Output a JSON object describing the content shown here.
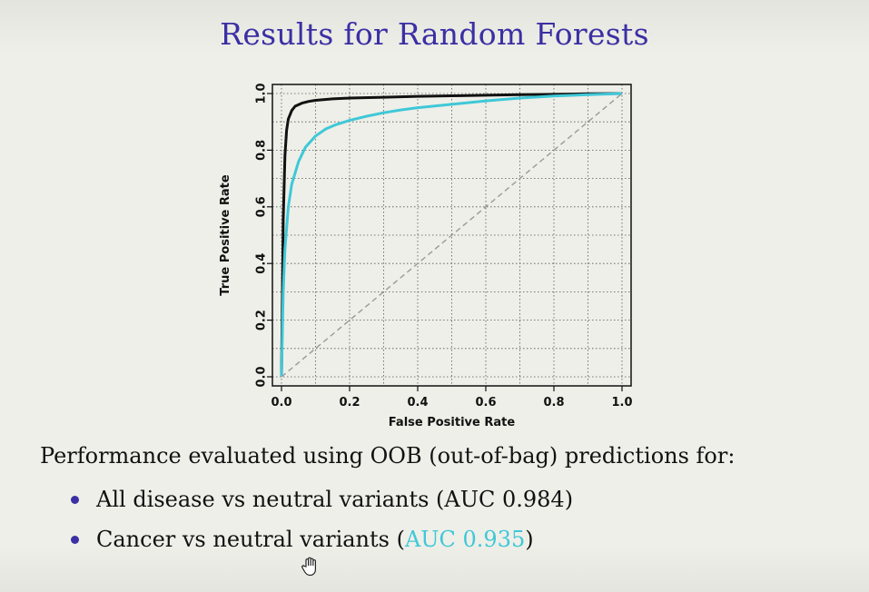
{
  "slide": {
    "title": "Results for Random Forests",
    "body_text": "Performance evaluated using OOB (out-of-bag) predictions for:",
    "bullets": [
      {
        "prefix": "All disease vs neutral variants (",
        "auc": "AUC 0.984",
        "suffix": ")"
      },
      {
        "prefix": "Cancer vs neutral variants (",
        "auc": "AUC 0.935",
        "suffix": ")"
      }
    ],
    "colors": {
      "title": "#3b2fa4",
      "bullet": "#3b2fa4",
      "cyan": "#3fc8d8"
    }
  },
  "cursor": {
    "icon": "hand-cursor-icon"
  },
  "chart_data": {
    "type": "line",
    "title": "",
    "xlabel": "False Positive Rate",
    "ylabel": "True Positive Rate",
    "xlim": [
      0.0,
      1.0
    ],
    "ylim": [
      0.0,
      1.0
    ],
    "xticks": [
      "0.0",
      "0.2",
      "0.4",
      "0.6",
      "0.8",
      "1.0"
    ],
    "yticks": [
      "0.0",
      "0.2",
      "0.4",
      "0.6",
      "0.8",
      "1.0"
    ],
    "grid": true,
    "series": [
      {
        "color": "#111111",
        "x": [
          0.0,
          0.005,
          0.01,
          0.015,
          0.02,
          0.03,
          0.04,
          0.06,
          0.08,
          0.1,
          0.15,
          0.2,
          0.3,
          0.4,
          0.5,
          0.6,
          0.7,
          0.8,
          0.9,
          1.0
        ],
        "y": [
          0.0,
          0.55,
          0.78,
          0.87,
          0.91,
          0.94,
          0.955,
          0.966,
          0.972,
          0.976,
          0.981,
          0.984,
          0.987,
          0.99,
          0.992,
          0.994,
          0.996,
          0.997,
          0.999,
          1.0
        ]
      },
      {
        "color": "#3fc8d8",
        "x": [
          0.0,
          0.005,
          0.01,
          0.02,
          0.03,
          0.05,
          0.07,
          0.1,
          0.13,
          0.16,
          0.2,
          0.25,
          0.3,
          0.35,
          0.4,
          0.5,
          0.6,
          0.7,
          0.8,
          0.9,
          1.0
        ],
        "y": [
          0.0,
          0.3,
          0.45,
          0.6,
          0.68,
          0.76,
          0.81,
          0.85,
          0.875,
          0.89,
          0.905,
          0.92,
          0.932,
          0.942,
          0.95,
          0.962,
          0.974,
          0.984,
          0.991,
          0.996,
          1.0
        ]
      },
      {
        "color": "#999999",
        "dashed": true,
        "x": [
          0.0,
          1.0
        ],
        "y": [
          0.0,
          1.0
        ]
      }
    ]
  }
}
